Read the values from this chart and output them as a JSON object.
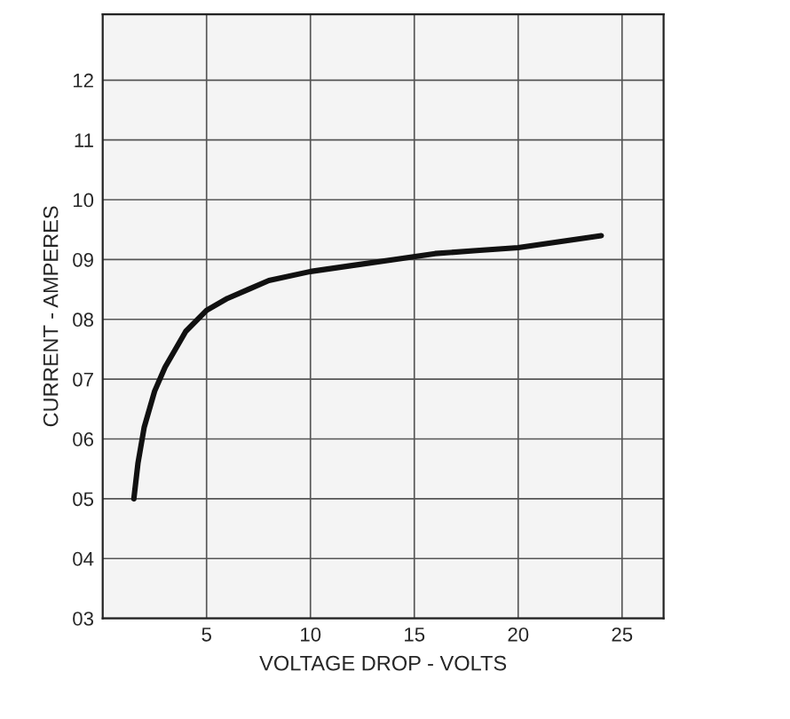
{
  "chart_data": {
    "type": "line",
    "xlabel": "VOLTAGE DROP - VOLTS",
    "ylabel": "CURRENT - AMPERES",
    "series": [
      {
        "color": "#111111",
        "x": [
          1.5,
          1.7,
          2,
          2.5,
          3,
          3.5,
          4,
          5,
          6,
          7,
          8,
          10,
          12,
          14,
          16,
          18,
          20,
          22,
          24
        ],
        "values": [
          5.0,
          5.6,
          6.2,
          6.8,
          7.2,
          7.5,
          7.8,
          8.15,
          8.35,
          8.5,
          8.65,
          8.8,
          8.9,
          9.0,
          9.1,
          9.15,
          9.2,
          9.3,
          9.4
        ]
      }
    ],
    "xlim": [
      0,
      27
    ],
    "ylim": [
      3,
      13.1
    ],
    "xticks": [
      5,
      10,
      15,
      20,
      25
    ],
    "yticks": [
      {
        "value": 3,
        "label": "03"
      },
      {
        "value": 4,
        "label": "04"
      },
      {
        "value": 5,
        "label": "05"
      },
      {
        "value": 6,
        "label": "06"
      },
      {
        "value": 7,
        "label": "07"
      },
      {
        "value": 8,
        "label": "08"
      },
      {
        "value": 9,
        "label": "09"
      },
      10,
      11,
      12
    ],
    "grid": true,
    "line_style": "solid",
    "marker": "none"
  }
}
